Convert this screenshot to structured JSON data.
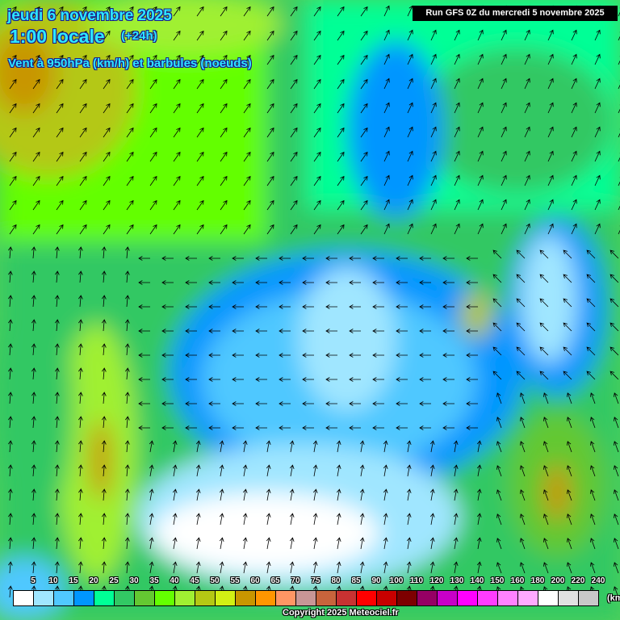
{
  "header": {
    "date": "jeudi 6 novembre 2025",
    "time": "1:00 locale",
    "lead": "(+24h)",
    "parameter": "Vent à 950hPa (km/h) et barbules (noeuds)",
    "run": "Run GFS 0Z du mercredi 5 novembre 2025"
  },
  "legend": {
    "unit": "(km/h)",
    "labels": [
      "5",
      "10",
      "15",
      "20",
      "25",
      "30",
      "35",
      "40",
      "45",
      "50",
      "55",
      "60",
      "65",
      "70",
      "75",
      "80",
      "85",
      "90",
      "100",
      "110",
      "120",
      "130",
      "140",
      "150",
      "160",
      "180",
      "200",
      "220",
      "240"
    ],
    "colors": [
      "#ffffff",
      "#a0e6ff",
      "#50c8ff",
      "#0096ff",
      "#00ff96",
      "#32c864",
      "#64c832",
      "#64ff00",
      "#a0f032",
      "#b4c814",
      "#d2f014",
      "#c89600",
      "#ff9600",
      "#ff9664",
      "#c89696",
      "#c8643c",
      "#c83232",
      "#ff0000",
      "#c80000",
      "#7d0000",
      "#960064",
      "#c800c8",
      "#ff00ff",
      "#ff3cff",
      "#ff82ff",
      "#ffaaff",
      "#ffffff",
      "#e1e1e1",
      "#c8c8c8"
    ]
  },
  "copyright": "Copyright 2025 Meteociel.fr"
}
